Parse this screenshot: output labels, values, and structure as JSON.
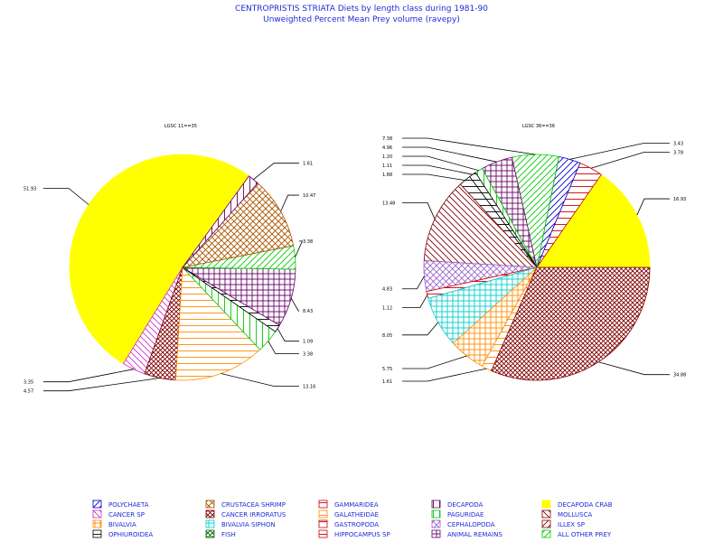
{
  "title": "CENTROPRISTIS STRIATA Diets by length class during 1981-90",
  "subtitle": "Unweighted Percent Mean Prey volume (ravepy)",
  "colors": {
    "title": "#1d2bd6",
    "legend_text": "#1d2bd6",
    "yellow": "#ffff00",
    "pink": "#cc33cc",
    "maroon": "#800000",
    "orange": "#ff8c00",
    "green": "#00cc00",
    "purple": "#660066",
    "red": "#cc0000",
    "blue": "#0000cc",
    "cyan": "#00cccc",
    "black": "#000000",
    "brown": "#aa5500",
    "violet": "#9966cc"
  },
  "legend": [
    {
      "name": "POLYCHAETA",
      "color": "#0000cc",
      "pattern": "diag-r"
    },
    {
      "name": "CRUSTACEA SHRIMP",
      "color": "#aa5500",
      "pattern": "crossdiag"
    },
    {
      "name": "GAMMARIDEA",
      "color": "#cc0000",
      "pattern": "hlines"
    },
    {
      "name": "DECAPODA",
      "color": "#660066",
      "pattern": "vlines"
    },
    {
      "name": "DECAPODA CRAB",
      "color": "#ffff00",
      "pattern": "solid"
    },
    {
      "name": "CANCER SP",
      "color": "#cc33cc",
      "pattern": "diag-l"
    },
    {
      "name": "CANCER IRRORATUS",
      "color": "#800000",
      "pattern": "crossdiag-dense"
    },
    {
      "name": "GALATHEIDAE",
      "color": "#ff8c00",
      "pattern": "hlines"
    },
    {
      "name": "PAGURIDAE",
      "color": "#00cc00",
      "pattern": "vlines"
    },
    {
      "name": "MOLLUSCA",
      "color": "#800000",
      "pattern": "diag-l"
    },
    {
      "name": "BIVALVIA",
      "color": "#ff8c00",
      "pattern": "grid"
    },
    {
      "name": "BIVALVIA SIPHON",
      "color": "#00cccc",
      "pattern": "grid"
    },
    {
      "name": "GASTROPODA",
      "color": "#cc0000",
      "pattern": "hlines"
    },
    {
      "name": "CEPHALOPODA",
      "color": "#9966cc",
      "pattern": "crossdiag"
    },
    {
      "name": "ILLEX SP",
      "color": "#800000",
      "pattern": "diag-r"
    },
    {
      "name": "OPHIUROIDEA",
      "color": "#000000",
      "pattern": "hlines"
    },
    {
      "name": "FISH",
      "color": "#006600",
      "pattern": "crossdiag-dense"
    },
    {
      "name": "HIPPOCAMPUS SP",
      "color": "#cc0000",
      "pattern": "hlines"
    },
    {
      "name": "ANIMAL REMAINS",
      "color": "#660066",
      "pattern": "grid"
    },
    {
      "name": "ALL OTHER PREY",
      "color": "#00cc00",
      "pattern": "diag-r"
    }
  ],
  "chart_data": [
    {
      "type": "pie",
      "title": "LGSC 11==35",
      "slices": [
        {
          "label": "51.93",
          "value": 51.93,
          "color": "#ffff00",
          "pattern": "solid"
        },
        {
          "label": "3.35",
          "value": 3.35,
          "color": "#cc33cc",
          "pattern": "diag-l"
        },
        {
          "label": "4.57",
          "value": 4.57,
          "color": "#800000",
          "pattern": "crossdiag-dense"
        },
        {
          "label": "13.16",
          "value": 13.16,
          "color": "#ff8c00",
          "pattern": "hlines"
        },
        {
          "label": "3.38",
          "value": 3.38,
          "color": "#00cc00",
          "pattern": "vlines"
        },
        {
          "label": "1.09",
          "value": 1.09,
          "color": "#000000",
          "pattern": "hlines"
        },
        {
          "label": "8.43",
          "value": 8.43,
          "color": "#660066",
          "pattern": "grid"
        },
        {
          "label": "3.38",
          "value": 3.38,
          "color": "#00cc00",
          "pattern": "diag-r"
        },
        {
          "label": "10.47",
          "value": 10.47,
          "color": "#aa5500",
          "pattern": "crossdiag"
        },
        {
          "label": "1.61",
          "value": 1.61,
          "color": "#660066",
          "pattern": "vlines"
        }
      ]
    },
    {
      "type": "pie",
      "title": "LGSC 36==36",
      "slices": [
        {
          "label": "16.93",
          "value": 16.93,
          "color": "#ffff00",
          "pattern": "solid"
        },
        {
          "label": "3.78",
          "value": 3.78,
          "color": "#cc0000",
          "pattern": "hlines"
        },
        {
          "label": "3.43",
          "value": 3.43,
          "color": "#0000cc",
          "pattern": "diag-r"
        },
        {
          "label": "7.38",
          "value": 7.38,
          "color": "#00cc00",
          "pattern": "diag-r"
        },
        {
          "label": "4.96",
          "value": 4.96,
          "color": "#660066",
          "pattern": "grid"
        },
        {
          "label": "1.20",
          "value": 1.2,
          "color": "#00cc00",
          "pattern": "vlines"
        },
        {
          "label": "1.11",
          "value": 1.11,
          "color": "#000000",
          "pattern": "hlines"
        },
        {
          "label": "1.88",
          "value": 1.88,
          "color": "#000000",
          "pattern": "hlines"
        },
        {
          "label": "13.48",
          "value": 13.48,
          "color": "#800000",
          "pattern": "diag-l"
        },
        {
          "label": "4.83",
          "value": 4.83,
          "color": "#9966cc",
          "pattern": "crossdiag"
        },
        {
          "label": "1.12",
          "value": 1.12,
          "color": "#cc0000",
          "pattern": "hlines"
        },
        {
          "label": "8.05",
          "value": 8.05,
          "color": "#00cccc",
          "pattern": "grid"
        },
        {
          "label": "5.75",
          "value": 5.75,
          "color": "#ff8c00",
          "pattern": "grid"
        },
        {
          "label": "1.61",
          "value": 1.61,
          "color": "#ff8c00",
          "pattern": "hlines"
        },
        {
          "label": "34.88",
          "value": 34.88,
          "color": "#800000",
          "pattern": "crossdiag-dense"
        }
      ]
    }
  ]
}
